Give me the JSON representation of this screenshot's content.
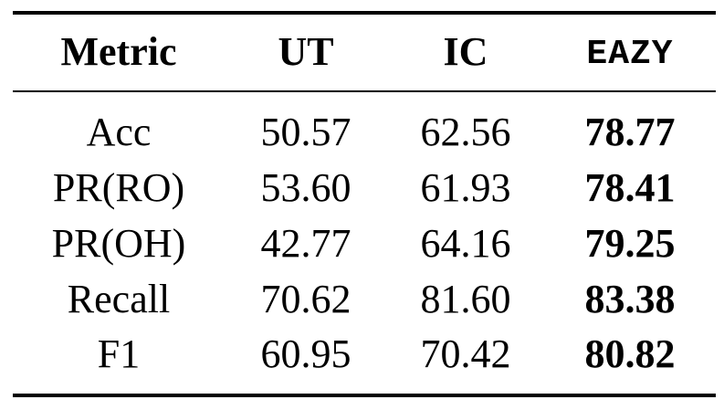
{
  "table": {
    "headers": [
      "Metric",
      "UT",
      "IC",
      "EAZY"
    ],
    "rows": [
      {
        "metric": "Acc",
        "ut": "50.57",
        "ic": "62.56",
        "eazy": "78.77"
      },
      {
        "metric": "PR(RO)",
        "ut": "53.60",
        "ic": "61.93",
        "eazy": "78.41"
      },
      {
        "metric": "PR(OH)",
        "ut": "42.77",
        "ic": "64.16",
        "eazy": "79.25"
      },
      {
        "metric": "Recall",
        "ut": "70.62",
        "ic": "81.60",
        "eazy": "83.38"
      },
      {
        "metric": "F1",
        "ut": "60.95",
        "ic": "70.42",
        "eazy": "80.82"
      }
    ],
    "bold_column": "EAZY"
  }
}
